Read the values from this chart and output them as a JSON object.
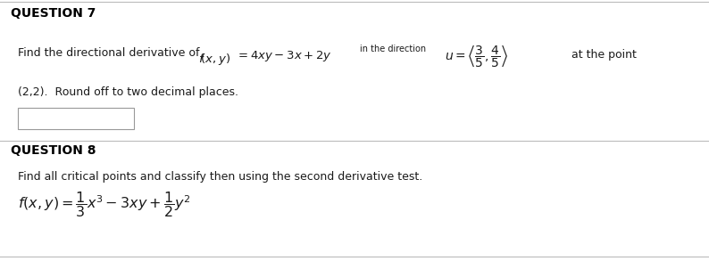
{
  "bg_color": "#ffffff",
  "q7_label": "QUESTION 7",
  "q8_label": "QUESTION 8",
  "q7_line2": "(2,2).  Round off to two decimal places.",
  "q8_line1": "Find all critical points and classify then using the second derivative test.",
  "divider_color": "#bbbbbb",
  "text_color": "#1a1a1a",
  "bold_color": "#000000",
  "fig_width": 7.94,
  "fig_height": 2.93,
  "dpi": 100
}
